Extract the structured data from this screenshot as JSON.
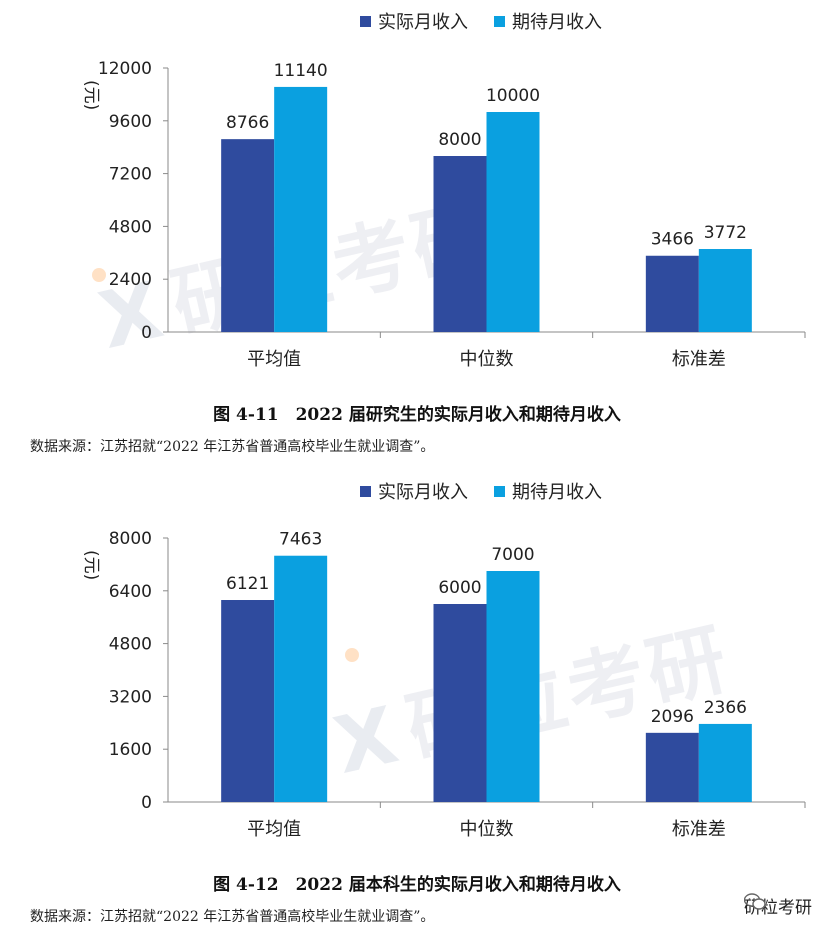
{
  "colors": {
    "actual": "#2f4b9e",
    "expected": "#0aa0e0",
    "axis": "#8a8a8a"
  },
  "watermark_text": "研粒考研",
  "brand": {
    "label": "研粒考研",
    "icon": "wechat-icon"
  },
  "charts": [
    {
      "caption": "图 4-11　2022 届研究生的实际月收入和期待月收入",
      "source": "数据来源：江苏招就“2022 年江苏省普通高校毕业生就业调查”。"
    },
    {
      "caption": "图 4-12　2022 届本科生的实际月收入和期待月收入",
      "source": "数据来源：江苏招就“2022 年江苏省普通高校毕业生就业调查”。"
    }
  ],
  "chart_data": [
    {
      "type": "bar",
      "categories": [
        "平均值",
        "中位数",
        "标准差"
      ],
      "series": [
        {
          "name": "实际月收入",
          "values": [
            8766,
            8000,
            3466
          ]
        },
        {
          "name": "期待月收入",
          "values": [
            11140,
            10000,
            3772
          ]
        }
      ],
      "ylabel": "元",
      "ylim": [
        0,
        12000
      ],
      "yticks": [
        0,
        2400,
        4800,
        7200,
        9600,
        12000
      ],
      "legend": "top",
      "grid": false,
      "title": "图 4-11　2022 届研究生的实际月收入和期待月收入"
    },
    {
      "type": "bar",
      "categories": [
        "平均值",
        "中位数",
        "标准差"
      ],
      "series": [
        {
          "name": "实际月收入",
          "values": [
            6121,
            6000,
            2096
          ]
        },
        {
          "name": "期待月收入",
          "values": [
            7463,
            7000,
            2366
          ]
        }
      ],
      "ylabel": "元",
      "ylim": [
        0,
        8000
      ],
      "yticks": [
        0,
        1600,
        3200,
        4800,
        6400,
        8000
      ],
      "legend": "top",
      "grid": false,
      "title": "图 4-12　2022 届本科生的实际月收入和期待月收入"
    }
  ]
}
